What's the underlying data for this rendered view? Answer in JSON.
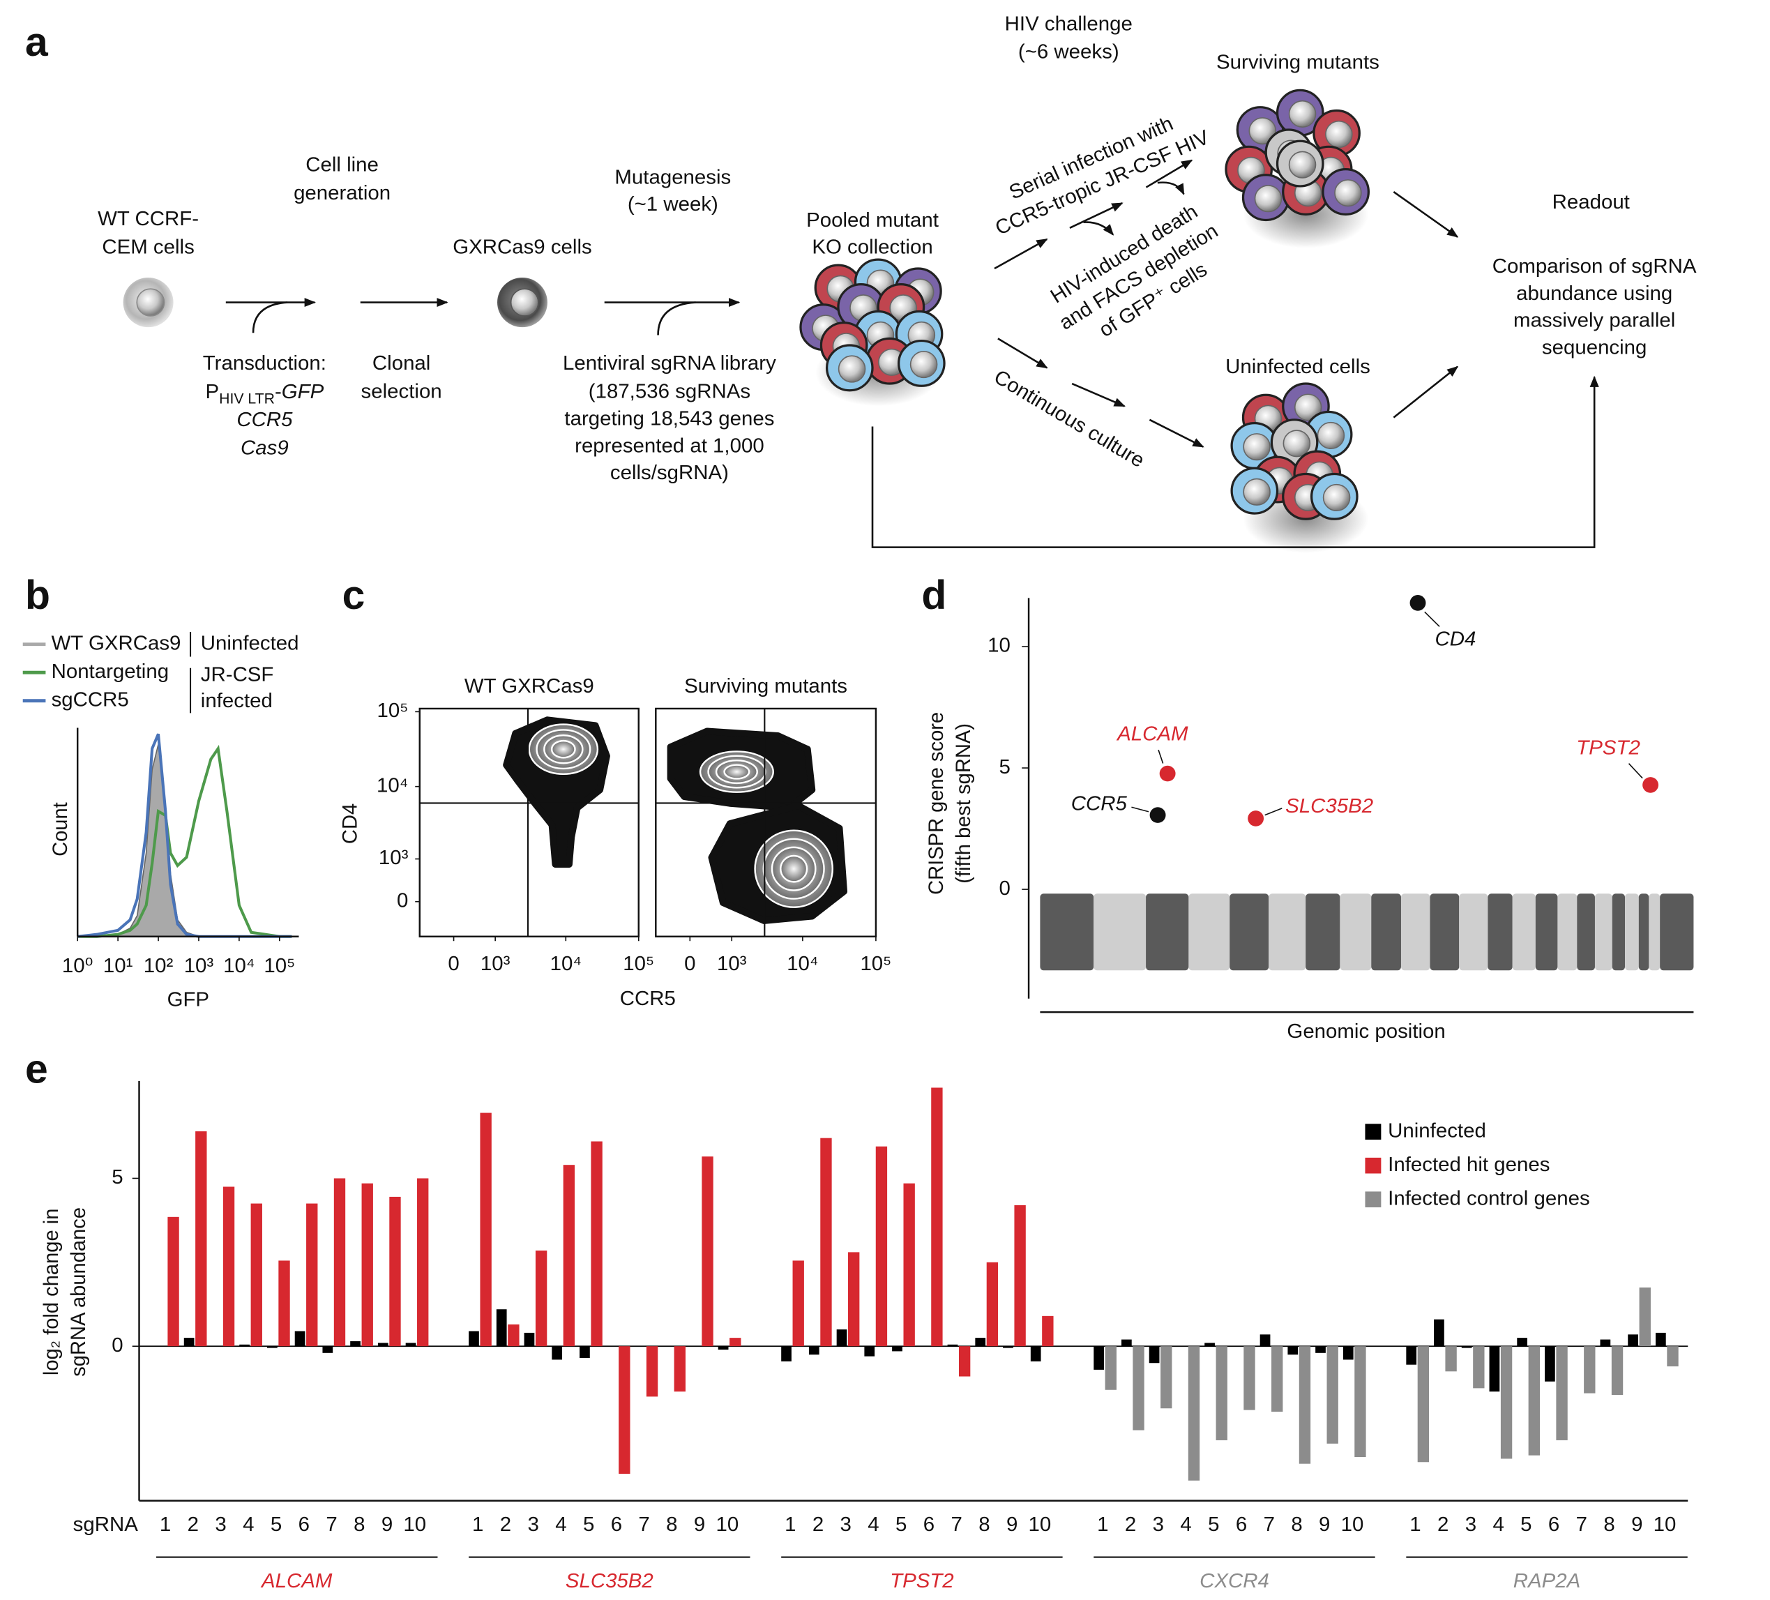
{
  "diagram": {
    "panel_label": "a",
    "wt_cells": [
      "WT CCRF-",
      "CEM cells"
    ],
    "step1_title": [
      "Cell line",
      "generation"
    ],
    "transduction": {
      "line1": "Transduction:",
      "p": "P",
      "sub": "HIV LTR",
      "dash": "-",
      "gfp": "GFP",
      "ccr5": "CCR5",
      "cas9": "Cas9"
    },
    "clonal": [
      "Clonal",
      "selection"
    ],
    "gxr": "GXRCas9 cells",
    "mutagenesis": [
      "Mutagenesis",
      "(~1 week)"
    ],
    "library": [
      "Lentiviral sgRNA library",
      "(187,536 sgRNAs",
      "targeting 18,543 genes",
      "represented at 1,000",
      "cells/sgRNA)"
    ],
    "pooled": [
      "Pooled mutant",
      "KO collection"
    ],
    "challenge": [
      "HIV challenge",
      "(~6 weeks)"
    ],
    "serial": [
      "Serial infection with",
      "CCR5-tropic JR-CSF HIV"
    ],
    "death": [
      "HIV-induced death",
      "and FACS depletion",
      "of GFP⁺ cells"
    ],
    "continuous": "Continuous culture",
    "surviving": "Surviving mutants",
    "uninfected": "Uninfected cells",
    "readout": "Readout",
    "comparison": [
      "Comparison of sgRNA",
      "abundance using",
      "massively parallel",
      "sequencing"
    ]
  },
  "chart_data": [
    {
      "type": "line",
      "panel_label": "b",
      "xlabel": "GFP",
      "ylabel": "Count",
      "log_x": true,
      "x": [
        1,
        3,
        10,
        20,
        30,
        50,
        70,
        100,
        150,
        200,
        300,
        500,
        1000,
        2000,
        3000,
        5000,
        10000,
        20000,
        100000,
        200000
      ],
      "series": [
        {
          "name": "WT GXRCas9",
          "color": "#a9a9a9",
          "area": true,
          "values": [
            0,
            0,
            1,
            4,
            10,
            40,
            80,
            92,
            62,
            30,
            8,
            2,
            0,
            0,
            0,
            0,
            0,
            0,
            0,
            0
          ]
        },
        {
          "name": "Nontargeting",
          "color": "#4e9a4b",
          "values": [
            0,
            0,
            1,
            3,
            6,
            15,
            35,
            60,
            58,
            40,
            34,
            38,
            65,
            85,
            90,
            60,
            15,
            2,
            0,
            0
          ]
        },
        {
          "name": "sgCCR5",
          "color": "#4a74b8",
          "values": [
            0,
            1,
            3,
            8,
            18,
            50,
            90,
            97,
            60,
            25,
            6,
            1,
            0,
            0,
            0,
            0,
            0,
            0,
            0,
            0
          ]
        }
      ],
      "annotations": [
        "Uninfected",
        "JR-CSF",
        "infected"
      ],
      "xlim": [
        1,
        300000
      ],
      "ylim": [
        0,
        100
      ],
      "xticks": [
        {
          "value": 1,
          "label": "10⁰"
        },
        {
          "value": 10,
          "label": "10¹"
        },
        {
          "value": 100,
          "label": "10²"
        },
        {
          "value": 1000,
          "label": "10³"
        },
        {
          "value": 10000,
          "label": "10⁴"
        },
        {
          "value": 100000,
          "label": "10⁵"
        }
      ]
    },
    {
      "type": "contour",
      "panel_label": "c",
      "title": "WT GXRCas9",
      "xlabel": "CCR5",
      "ylabel": "CD4",
      "xlim": [
        -750,
        100000
      ],
      "ylim": [
        -750,
        110000
      ],
      "gates": {
        "x": 3000,
        "y": 6000
      },
      "xticks": [
        0,
        {
          "value": 1000,
          "label": "10³"
        },
        {
          "value": 10000,
          "label": "10⁴"
        },
        {
          "value": 100000,
          "label": "10⁵"
        }
      ],
      "yticks": [
        0,
        {
          "value": 1000,
          "label": "10³"
        },
        {
          "value": 10000,
          "label": "10⁴"
        },
        {
          "value": 100000,
          "label": "10⁵"
        }
      ]
    },
    {
      "type": "contour",
      "title": "Surviving mutants",
      "xlim": [
        -750,
        100000
      ],
      "ylim": [
        -750,
        110000
      ],
      "gates": {
        "x": 3000,
        "y": 6000
      },
      "xticks": [
        0,
        {
          "value": 1000,
          "label": "10³"
        },
        {
          "value": 10000,
          "label": "10⁴"
        },
        {
          "value": 100000,
          "label": "10⁵"
        }
      ]
    },
    {
      "type": "scatter",
      "panel_label": "d",
      "xlabel": "Genomic position",
      "ylabel": [
        "CRISPR gene score",
        "(fifth best sgRNA)"
      ],
      "xlim": [
        0,
        100
      ],
      "ylim": [
        -4.5,
        12
      ],
      "yticks": [
        0,
        5,
        10
      ],
      "series": [
        {
          "name": "CD4",
          "color": "#111111",
          "x": [
            57.8
          ],
          "values": [
            11.8
          ]
        },
        {
          "name": "ALCAM",
          "color": "#d7282f",
          "x": [
            19.5
          ],
          "values": [
            4.77
          ]
        },
        {
          "name": "CCR5",
          "color": "#111111",
          "x": [
            18.0
          ],
          "values": [
            3.06
          ]
        },
        {
          "name": "SLC35B2",
          "color": "#d7282f",
          "x": [
            33.0
          ],
          "values": [
            2.92
          ]
        },
        {
          "name": "TPST2",
          "color": "#d7282f",
          "x": [
            93.4
          ],
          "values": [
            4.3
          ]
        }
      ]
    },
    {
      "type": "bar",
      "panel_label": "e",
      "xlabel": "sgRNA",
      "ylabel": [
        "log₂ fold change in",
        "sgRNA abundance"
      ],
      "ylim": [
        -4.6,
        7.9
      ],
      "yticks": [
        0,
        5
      ],
      "categories": [
        "1",
        "2",
        "3",
        "4",
        "5",
        "6",
        "7",
        "8",
        "9",
        "10",
        "1",
        "2",
        "3",
        "4",
        "5",
        "6",
        "7",
        "8",
        "9",
        "10",
        "1",
        "2",
        "3",
        "4",
        "5",
        "6",
        "7",
        "8",
        "9",
        "10",
        "1",
        "2",
        "3",
        "4",
        "5",
        "6",
        "7",
        "8",
        "9",
        "10",
        "1",
        "2",
        "3",
        "4",
        "5",
        "6",
        "7",
        "8",
        "9",
        "10"
      ],
      "groups": [
        {
          "name": "ALCAM",
          "color": "#d7282f"
        },
        {
          "name": "SLC35B2",
          "color": "#d7282f"
        },
        {
          "name": "TPST2",
          "color": "#d7282f"
        },
        {
          "name": "CXCR4",
          "color": "#8c8c8c"
        },
        {
          "name": "RAP2A",
          "color": "#8c8c8c"
        }
      ],
      "series": [
        {
          "name": "Uninfected",
          "color": "#000000",
          "values": [
            0.0,
            0.25,
            0.0,
            0.05,
            -0.05,
            0.45,
            -0.2,
            0.15,
            0.1,
            0.1,
            0.45,
            1.1,
            0.4,
            -0.4,
            -0.35,
            0.0,
            0.0,
            0.0,
            0.0,
            -0.1,
            -0.45,
            -0.25,
            0.5,
            -0.3,
            -0.15,
            0.0,
            0.05,
            0.25,
            -0.05,
            -0.45,
            -0.7,
            0.2,
            -0.5,
            0.0,
            0.1,
            0.0,
            0.35,
            -0.25,
            -0.2,
            -0.4,
            -0.55,
            0.8,
            -0.05,
            -1.35,
            0.25,
            -1.05,
            0.0,
            0.2,
            0.35,
            0.4
          ]
        },
        {
          "name": "Infected hit genes",
          "color": "#d7282f",
          "values": [
            3.85,
            6.4,
            4.75,
            4.25,
            2.55,
            4.25,
            5.0,
            4.85,
            4.45,
            5.0,
            6.95,
            0.65,
            2.85,
            5.4,
            6.1,
            -3.8,
            -1.5,
            -1.35,
            5.65,
            0.25,
            2.55,
            6.2,
            2.8,
            5.95,
            4.85,
            7.7,
            -0.9,
            2.5,
            4.2,
            0.9,
            null,
            null,
            null,
            null,
            null,
            null,
            null,
            null,
            null,
            null,
            null,
            null,
            null,
            null,
            null,
            null,
            null,
            null,
            null,
            null
          ]
        },
        {
          "name": "Infected control genes",
          "color": "#8c8c8c",
          "values": [
            null,
            null,
            null,
            null,
            null,
            null,
            null,
            null,
            null,
            null,
            null,
            null,
            null,
            null,
            null,
            null,
            null,
            null,
            null,
            null,
            null,
            null,
            null,
            null,
            null,
            null,
            null,
            null,
            null,
            null,
            -1.3,
            -2.5,
            -1.85,
            -4.0,
            -2.8,
            -1.9,
            -1.95,
            -3.5,
            -2.9,
            -3.3,
            -3.45,
            -0.75,
            -1.25,
            -3.35,
            -3.25,
            -2.8,
            -1.4,
            -1.45,
            1.75,
            -0.6
          ]
        }
      ]
    }
  ]
}
